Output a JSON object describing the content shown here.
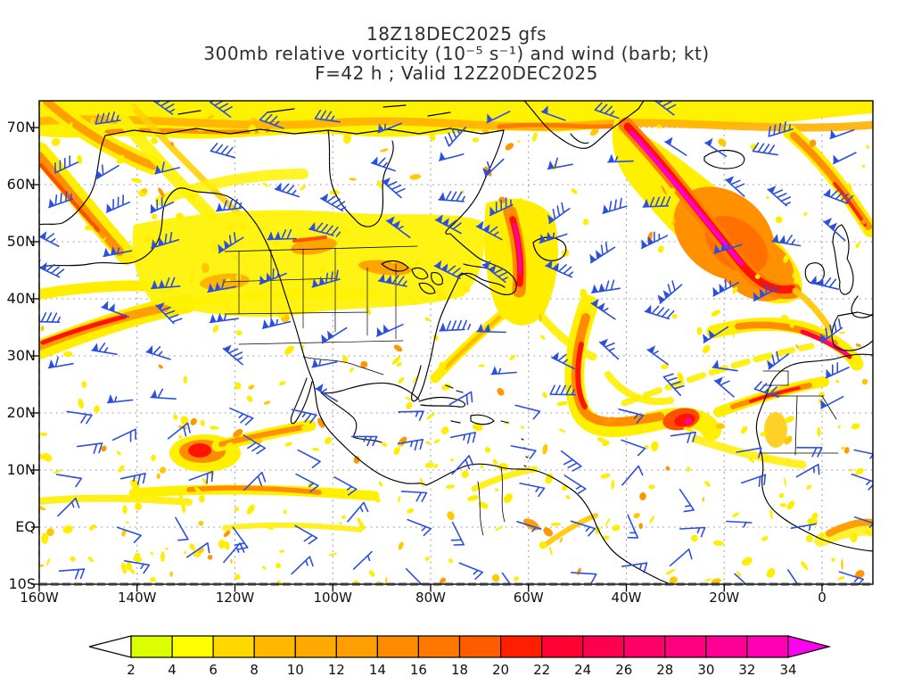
{
  "title": {
    "line1": "18Z18DEC2025 gfs",
    "line2": "300mb relative vorticity (10⁻⁵ s⁻¹) and wind (barb; kt)",
    "line3": "F=42 h ; Valid 12Z20DEC2025"
  },
  "axes": {
    "lat_labels": [
      "70N",
      "60N",
      "50N",
      "40N",
      "30N",
      "20N",
      "10N",
      "EQ",
      "10S"
    ],
    "lon_labels": [
      "160W",
      "140W",
      "120W",
      "100W",
      "80W",
      "60W",
      "40W",
      "20W",
      "0"
    ]
  },
  "colorbar": {
    "tick_labels": [
      "2",
      "4",
      "6",
      "8",
      "10",
      "12",
      "14",
      "16",
      "18",
      "20",
      "22",
      "24",
      "26",
      "28",
      "30",
      "32",
      "34"
    ],
    "segment_colors": [
      "#dcff00",
      "#ffff00",
      "#ffd800",
      "#ffb800",
      "#ffaa00",
      "#ff9e00",
      "#ff8a00",
      "#ff7600",
      "#ff5c00",
      "#ff1e00",
      "#ff0032",
      "#ff0050",
      "#ff0068",
      "#ff007e",
      "#ff0094",
      "#ff00b4"
    ],
    "below_min_color": "#ffffff",
    "above_max_color": "#ff00f0"
  },
  "wind_field": {
    "barb_color": "#2b4fe0",
    "units": "kt"
  },
  "map_colors": {
    "coastline": "#000000",
    "grid_dots": "#9a9a9a",
    "background": "#ffffff"
  },
  "chart_data": {
    "type": "heatmap",
    "title": "18Z18DEC2025 gfs",
    "variable": "300mb relative vorticity (10⁻⁵ s⁻¹)",
    "overlay": "wind (barb; kt)",
    "model": "gfs",
    "init": "18Z18DEC2025",
    "forecast_hour": "F=42 h",
    "valid": "12Z20DEC2025",
    "x_ticks": [
      "160W",
      "140W",
      "120W",
      "100W",
      "80W",
      "60W",
      "40W",
      "20W",
      "0"
    ],
    "y_ticks": [
      "70N",
      "60N",
      "50N",
      "40N",
      "30N",
      "20N",
      "10N",
      "EQ",
      "10S"
    ],
    "x_range": [
      "160W",
      "~10E"
    ],
    "y_range": [
      "10S",
      "~75N"
    ],
    "colorbar_levels": [
      2,
      4,
      6,
      8,
      10,
      12,
      14,
      16,
      18,
      20,
      22,
      24,
      26,
      28,
      30,
      32,
      34
    ],
    "colorbar_units": "10⁻⁵ s⁻¹",
    "grid": "dotted, every 10 deg latitude / 20 deg longitude",
    "features": [
      {
        "location": "North Atlantic streak from SE Greenland toward Ireland",
        "value": ">34 magenta core inside broad orange maximum"
      },
      {
        "location": "Gulf of St. Lawrence / eastern Canada",
        "value": "20-30 red-magenta streak"
      },
      {
        "location": "central Atlantic cut-off low near 25-33N 55-65W",
        "value": "14-22 curved comma band"
      },
      {
        "location": "tropical NE Pacific near 13N 125W",
        "value": "~20 red maximum"
      },
      {
        "location": "NW Africa / Gibraltar jet streaks",
        "value": "16-26"
      },
      {
        "location": "Arctic band along 72-75N",
        "value": "6-14 continuous band"
      },
      {
        "location": "Gulf of Alaska diagonal streaks",
        "value": "8-18"
      },
      {
        "location": "NE Pacific jet near 40N at western edge",
        "value": "14-20 with red core"
      }
    ]
  }
}
